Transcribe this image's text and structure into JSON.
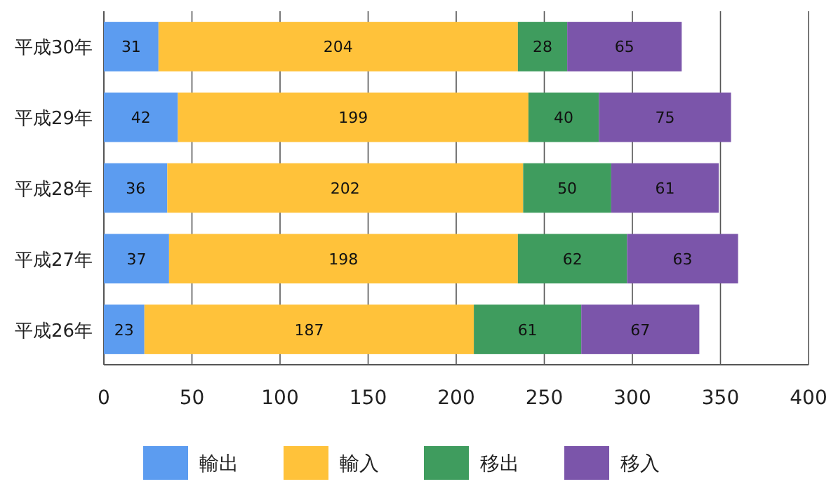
{
  "chart_data": {
    "type": "bar",
    "orientation": "horizontal",
    "stacked": true,
    "categories": [
      "平成30年",
      "平成29年",
      "平成28年",
      "平成27年",
      "平成26年"
    ],
    "series": [
      {
        "name": "輸出",
        "color": "#5c9cf0",
        "values": [
          31,
          42,
          36,
          37,
          23
        ]
      },
      {
        "name": "輸入",
        "color": "#ffc23a",
        "values": [
          204,
          199,
          202,
          198,
          187
        ]
      },
      {
        "name": "移出",
        "color": "#3f9c5e",
        "values": [
          28,
          40,
          50,
          62,
          61
        ]
      },
      {
        "name": "移入",
        "color": "#7b55aa",
        "values": [
          65,
          75,
          61,
          63,
          67
        ]
      }
    ],
    "xlim": [
      0,
      400
    ],
    "xticks": [
      0,
      50,
      100,
      150,
      200,
      250,
      300,
      350,
      400
    ],
    "grid": "x",
    "legend": "bottom",
    "data_labels": true
  }
}
